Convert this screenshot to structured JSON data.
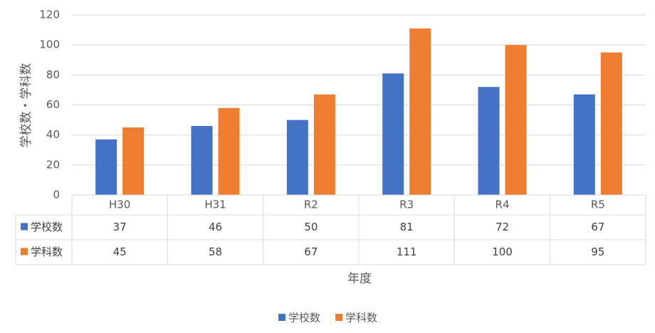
{
  "chart_data": {
    "type": "bar",
    "title": "",
    "xlabel": "年度",
    "ylabel": "学校数・学科数",
    "ylim": [
      0,
      120
    ],
    "yticks": [
      0,
      20,
      40,
      60,
      80,
      100,
      120
    ],
    "categories": [
      "H30",
      "H31",
      "R2",
      "R3",
      "R4",
      "R5"
    ],
    "series": [
      {
        "name": "学校数",
        "color": "#4472C4",
        "values": [
          37,
          46,
          50,
          81,
          72,
          67
        ]
      },
      {
        "name": "学科数",
        "color": "#ED7D31",
        "values": [
          45,
          58,
          67,
          111,
          100,
          95
        ]
      }
    ],
    "grid": true,
    "data_table": true,
    "legend_position": "bottom"
  }
}
